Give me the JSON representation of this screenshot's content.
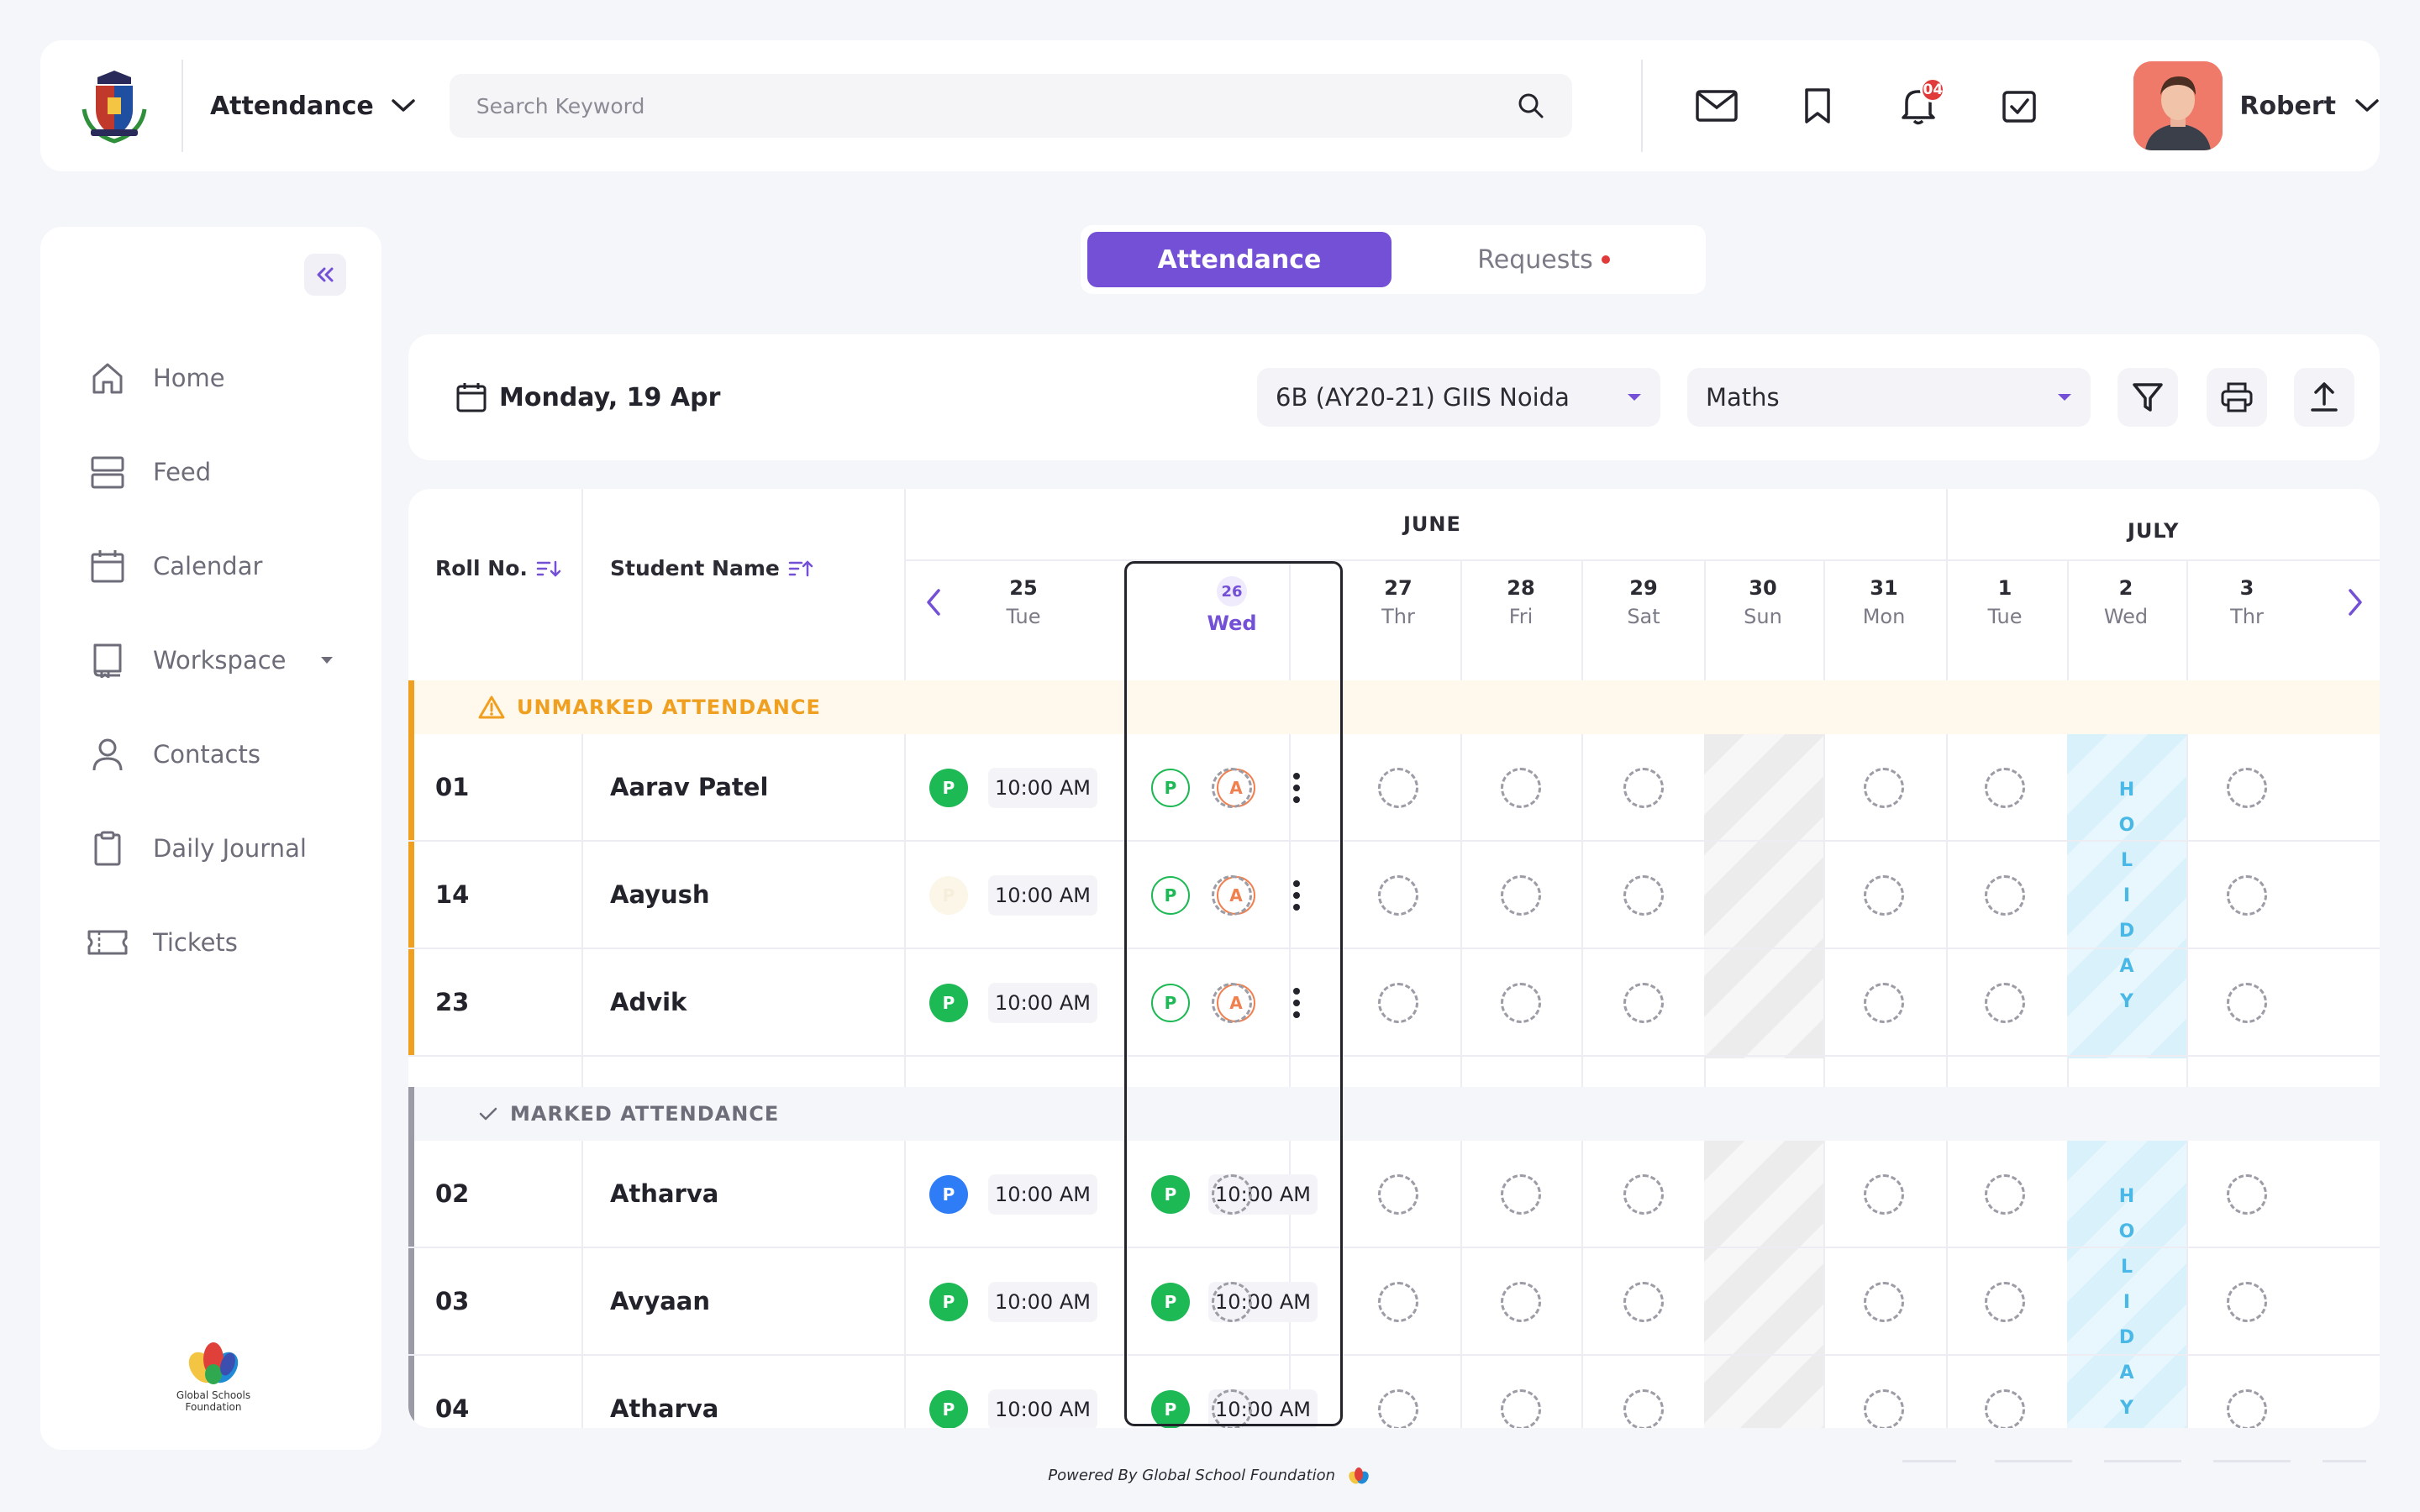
{
  "header": {
    "module": "Attendance",
    "search_placeholder": "Search Keyword",
    "notification_count": "04",
    "user_name": "Robert"
  },
  "sidebar": {
    "items": [
      {
        "label": "Home",
        "icon": "home-icon"
      },
      {
        "label": "Feed",
        "icon": "feed-icon"
      },
      {
        "label": "Calendar",
        "icon": "calendar-icon"
      },
      {
        "label": "Workspace",
        "icon": "workspace-icon"
      },
      {
        "label": "Contacts",
        "icon": "contacts-icon"
      },
      {
        "label": "Daily Journal",
        "icon": "journal-icon"
      },
      {
        "label": "Tickets",
        "icon": "ticket-icon"
      }
    ],
    "brand_line1": "Global Schools",
    "brand_line2": "Foundation"
  },
  "tabs": [
    {
      "label": "Attendance",
      "active": true
    },
    {
      "label": "Requests",
      "active": false,
      "has_dot": true
    }
  ],
  "filters": {
    "date": "Monday, 19 Apr",
    "class": "6B (AY20-21) GIIS Noida",
    "subject": "Maths"
  },
  "table": {
    "col_roll": "Roll No.",
    "col_name": "Student Name",
    "months": [
      "JUNE",
      "JULY"
    ],
    "days": [
      {
        "num": "25",
        "day": "Tue"
      },
      {
        "num": "26",
        "day": "Wed",
        "today": true
      },
      {
        "num": "27",
        "day": "Thr"
      },
      {
        "num": "28",
        "day": "Fri"
      },
      {
        "num": "29",
        "day": "Sat"
      },
      {
        "num": "30",
        "day": "Sun"
      },
      {
        "num": "31",
        "day": "Mon"
      },
      {
        "num": "1",
        "day": "Tue"
      },
      {
        "num": "2",
        "day": "Wed"
      },
      {
        "num": "3",
        "day": "Thr"
      }
    ],
    "unmarked_label": "UNMARKED ATTENDANCE",
    "marked_label": "MARKED ATTENDANCE",
    "holiday_letters": [
      "H",
      "O",
      "L",
      "I",
      "D",
      "A",
      "Y"
    ],
    "present_letter": "P",
    "absent_letter": "A",
    "unmarked_rows": [
      {
        "roll": "01",
        "name": "Aarav Patel",
        "prev_status": "P",
        "prev_style": "p",
        "prev_time": "10:00 AM"
      },
      {
        "roll": "14",
        "name": "Aayush",
        "prev_status": "P",
        "prev_style": "faded",
        "prev_time": "10:00 AM"
      },
      {
        "roll": "23",
        "name": "Advik",
        "prev_status": "P",
        "prev_style": "p",
        "prev_time": "10:00 AM"
      }
    ],
    "marked_rows": [
      {
        "roll": "02",
        "name": "Atharva",
        "prev_status": "P",
        "prev_style": "blue",
        "prev_time": "10:00 AM",
        "today_status": "P",
        "today_time": "10:00 AM"
      },
      {
        "roll": "03",
        "name": "Avyaan",
        "prev_status": "P",
        "prev_style": "p",
        "prev_time": "10:00 AM",
        "today_status": "P",
        "today_time": "10:00 AM"
      },
      {
        "roll": "04",
        "name": "Atharva",
        "prev_status": "P",
        "prev_style": "p",
        "prev_time": "10:00 AM",
        "today_status": "P",
        "today_time": "10:00 AM"
      }
    ]
  },
  "footer": {
    "powered_by": "Powered By Global School Foundation"
  },
  "colors": {
    "accent": "#7350d6",
    "present": "#1db954",
    "absent": "#f08050",
    "warning": "#f0a020",
    "holiday": "#4ab8e6"
  }
}
